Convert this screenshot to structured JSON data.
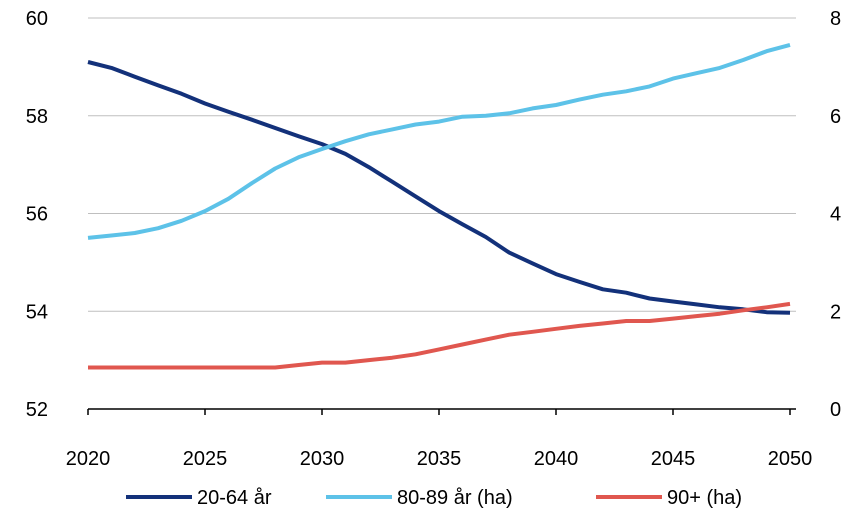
{
  "chart_data": {
    "type": "line",
    "title": "",
    "xlabel": "",
    "ylabel_left": "",
    "ylabel_right": "",
    "xlim": [
      2020,
      2050
    ],
    "ylim_left": [
      52,
      60
    ],
    "ylim_right": [
      0,
      8
    ],
    "x_ticks": [
      "2020",
      "2025",
      "2030",
      "2035",
      "2040",
      "2045",
      "2050"
    ],
    "y_left_ticks": [
      "52",
      "54",
      "56",
      "58",
      "60"
    ],
    "y_right_ticks": [
      "0",
      "2",
      "4",
      "6",
      "8"
    ],
    "grid": "horizontal",
    "legend_position": "bottom",
    "x": [
      2020,
      2021,
      2022,
      2023,
      2024,
      2025,
      2026,
      2027,
      2028,
      2029,
      2030,
      2031,
      2032,
      2033,
      2034,
      2035,
      2036,
      2037,
      2038,
      2039,
      2040,
      2041,
      2042,
      2043,
      2044,
      2045,
      2046,
      2047,
      2048,
      2049,
      2050
    ],
    "series": [
      {
        "name": "20-64 år",
        "axis": "left",
        "color": "#13317a",
        "values": [
          59.1,
          59.0,
          58.8,
          58.6,
          58.4,
          58.2,
          58.0,
          57.8,
          57.6,
          57.4,
          57.2,
          57.0,
          56.8,
          56.5,
          56.2,
          55.9,
          55.6,
          55.3,
          55.0,
          54.8,
          54.6,
          54.5,
          54.35,
          54.3,
          54.2,
          54.15,
          54.1,
          54.05,
          54.0,
          53.98,
          53.97
        ],
        "values_override": [
          59.1,
          58.98,
          58.8,
          58.62,
          58.45,
          58.25,
          58.08,
          57.92,
          57.75,
          57.58,
          57.42,
          57.22,
          56.95,
          56.65,
          56.35,
          56.05,
          55.78,
          55.52,
          55.2,
          54.98,
          54.76,
          54.6,
          54.45,
          54.38,
          54.26,
          54.2,
          54.14,
          54.08,
          54.04,
          53.98,
          53.97
        ]
      },
      {
        "name": "80-89 år (ha)",
        "axis": "right",
        "color": "#5dc2e8",
        "values": [
          3.5,
          3.55,
          3.6,
          3.7,
          3.85,
          4.05,
          4.3,
          4.62,
          4.92,
          5.15,
          5.32,
          5.48,
          5.62,
          5.72,
          5.82,
          5.88,
          5.98,
          6.0,
          6.05,
          6.15,
          6.22,
          6.33,
          6.43,
          6.5,
          6.6,
          6.76,
          6.87,
          6.98,
          7.14,
          7.32,
          7.45
        ]
      },
      {
        "name": "90+ (ha)",
        "axis": "right",
        "color": "#e0574f",
        "values": [
          0.85,
          0.85,
          0.85,
          0.85,
          0.85,
          0.85,
          0.85,
          0.85,
          0.85,
          0.9,
          0.95,
          0.95,
          1.0,
          1.05,
          1.12,
          1.22,
          1.32,
          1.42,
          1.52,
          1.58,
          1.64,
          1.7,
          1.75,
          1.8,
          1.8,
          1.85,
          1.9,
          1.95,
          2.02,
          2.08,
          2.15
        ]
      }
    ]
  }
}
